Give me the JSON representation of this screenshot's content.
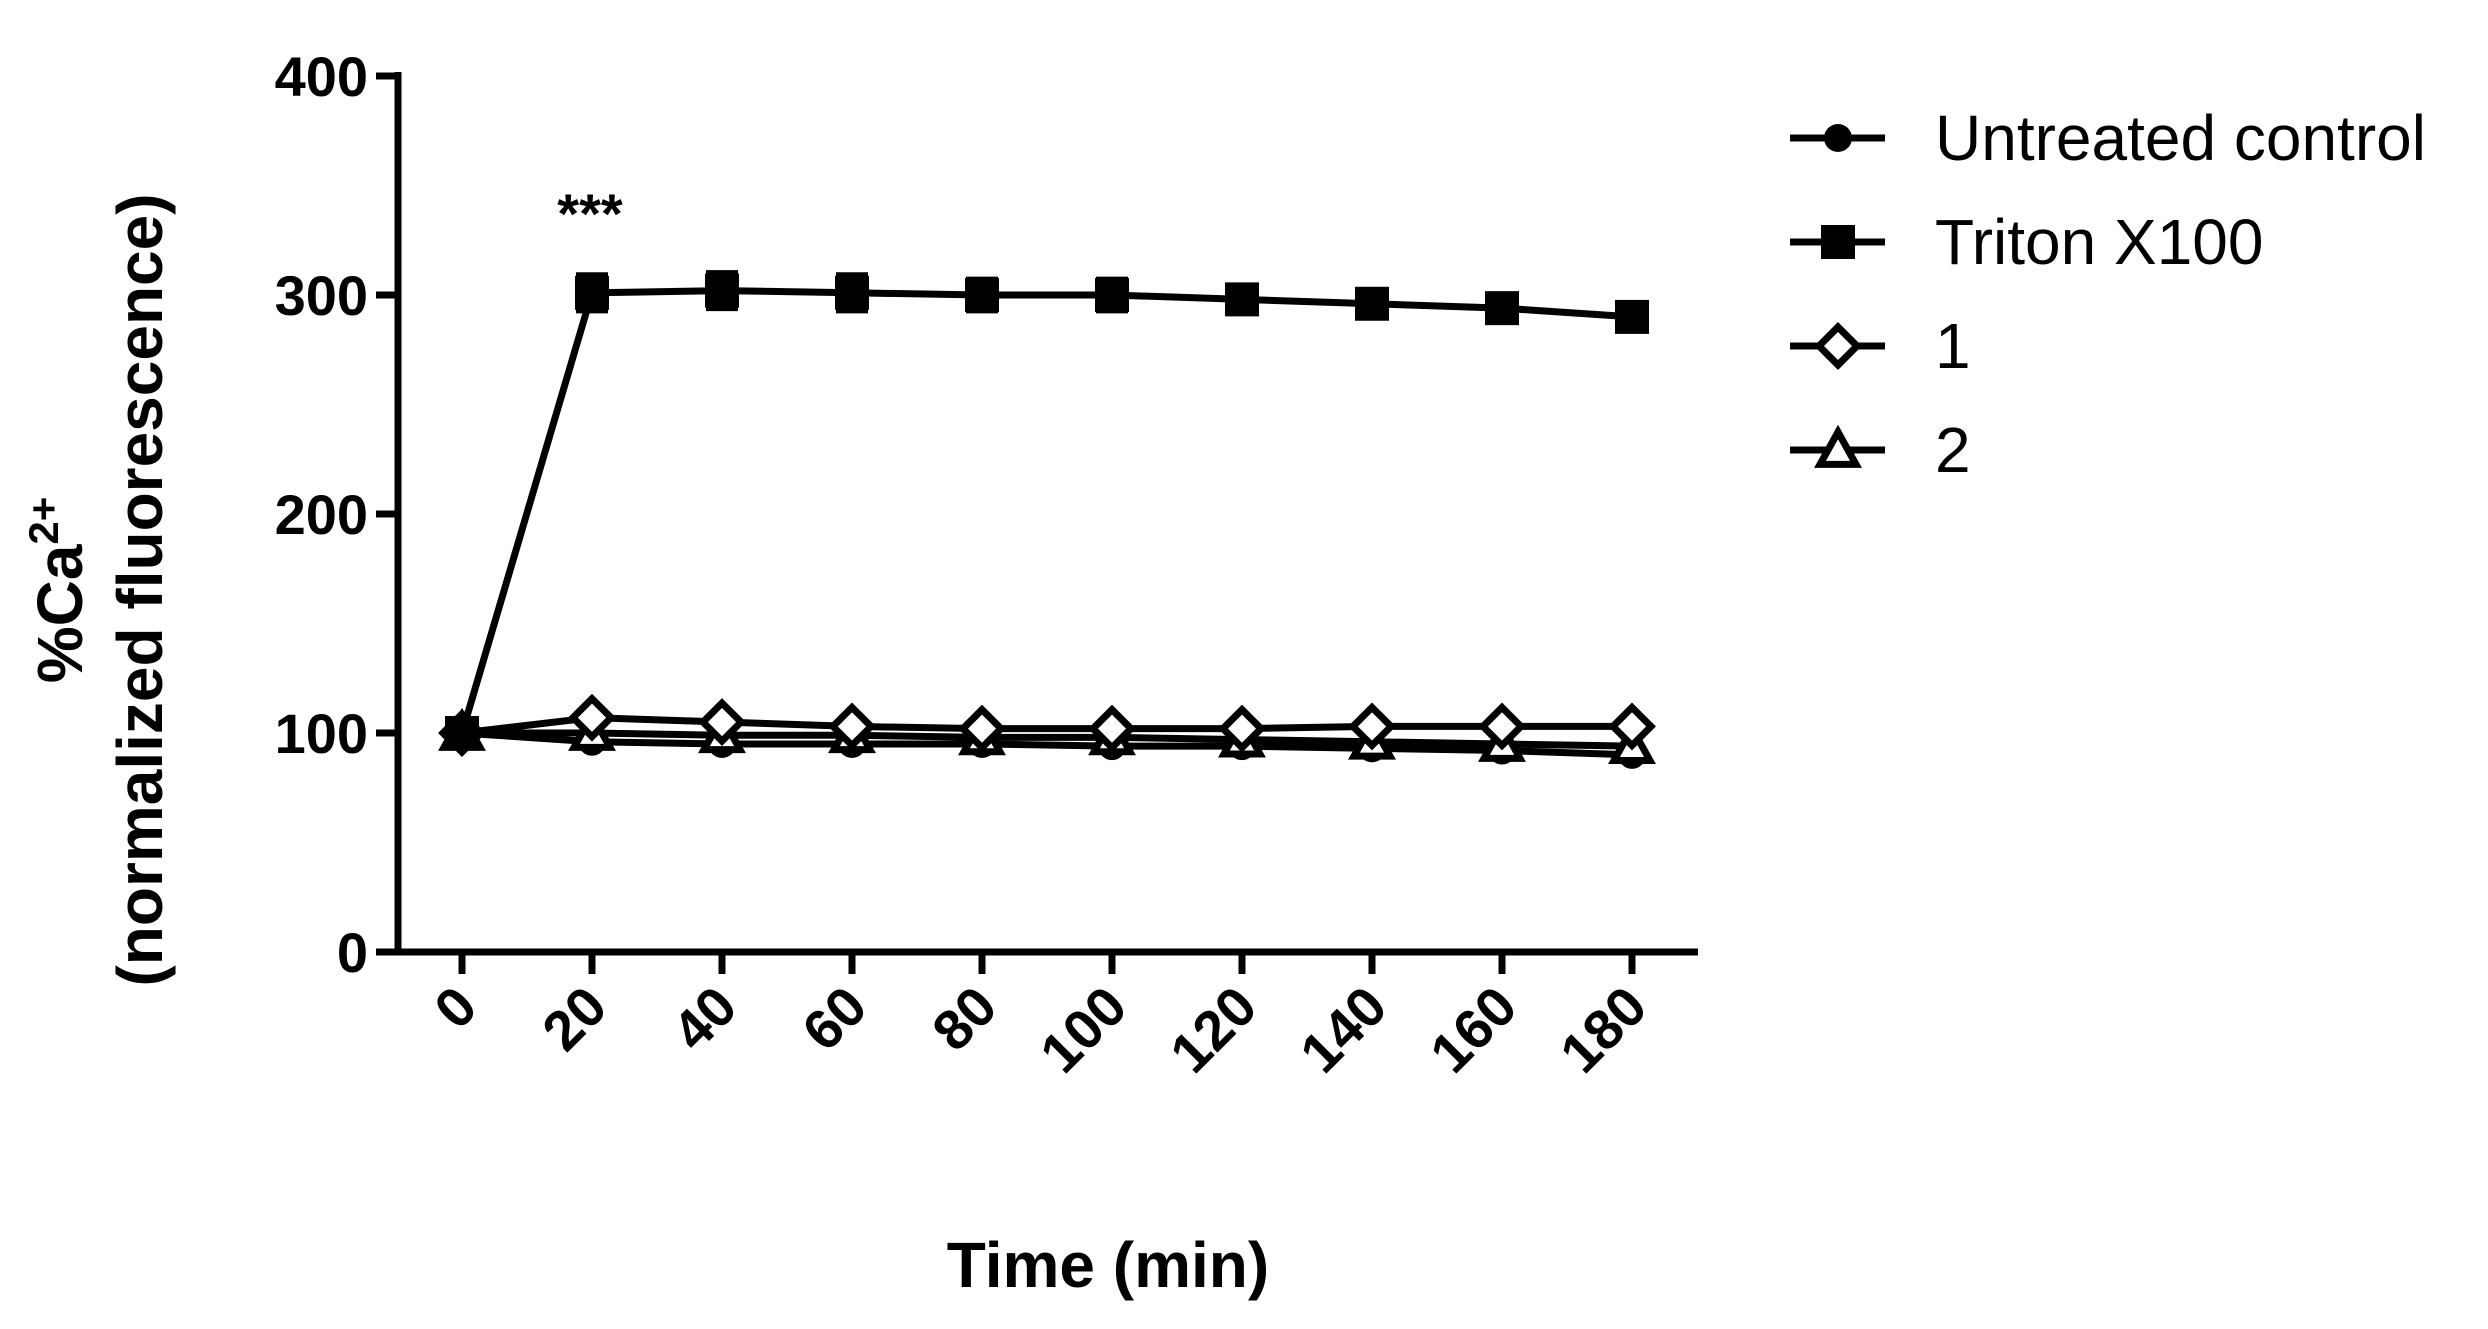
{
  "chart_data": {
    "type": "line",
    "xlabel": "Time (min)",
    "ylabel": {
      "line1_prefix": "%Ca",
      "line1_sup": "2+",
      "line2": "(normalized fluorescence)"
    },
    "x": [
      0,
      20,
      40,
      60,
      80,
      100,
      120,
      140,
      160,
      180
    ],
    "x_tick_labels": [
      "0",
      "20",
      "40",
      "60",
      "80",
      "100",
      "120",
      "140",
      "160",
      "180"
    ],
    "ylim": [
      0,
      400
    ],
    "y_ticks": [
      0,
      100,
      200,
      300,
      400
    ],
    "y_tick_labels": [
      "0",
      "100",
      "200",
      "300",
      "400"
    ],
    "grid": false,
    "legend_position": "top-right",
    "series": [
      {
        "name": "Untreated control",
        "marker": "circle-filled",
        "values": [
          100,
          96,
          95,
          95,
          95,
          94,
          94,
          93,
          92,
          90
        ]
      },
      {
        "name": "Triton X100",
        "marker": "square-filled",
        "values": [
          100,
          301,
          302,
          301,
          300,
          300,
          298,
          296,
          294,
          290
        ],
        "errors": [
          0,
          8,
          8,
          8,
          7,
          7,
          5,
          4,
          4,
          4
        ]
      },
      {
        "name": "1",
        "marker": "diamond-open",
        "values": [
          100,
          107,
          105,
          103,
          102,
          102,
          102,
          103,
          103,
          103
        ]
      },
      {
        "name": "2",
        "marker": "triangle-open",
        "values": [
          100,
          100,
          99,
          99,
          98,
          98,
          97,
          96,
          95,
          94
        ]
      }
    ],
    "annotations": [
      {
        "text": "***",
        "x": 20
      }
    ]
  }
}
